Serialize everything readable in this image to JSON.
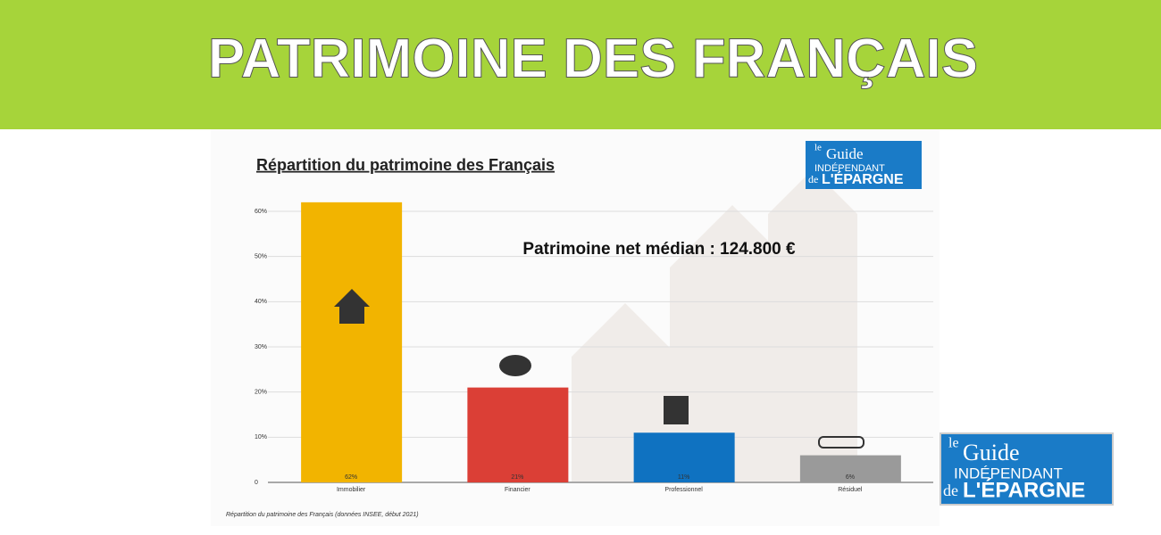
{
  "banner_title": "PATRIMOINE DES FRANÇAIS",
  "logo": {
    "line1": "le",
    "line2": "Guide",
    "line3": "INDÉPENDANT",
    "line4": "de",
    "line5": "L'ÉPARGNE"
  },
  "chart_data": {
    "type": "bar",
    "title": "Répartition du patrimoine des Français",
    "annotation": "Patrimoine net médian : 124.800 €",
    "source": "Répartition du patrimoine des Français (données INSEE, début 2021)",
    "categories": [
      "Immobilier",
      "Financier",
      "Professionnel",
      "Résiduel"
    ],
    "values": [
      62,
      21,
      11,
      6
    ],
    "value_labels": [
      "62%",
      "21%",
      "11%",
      "6%"
    ],
    "colors": [
      "#f2b400",
      "#db3f36",
      "#0f72c1",
      "#9a9a9a"
    ],
    "ylim": [
      0,
      64
    ],
    "yticks": [
      0,
      {
        "value": 10,
        "label": "10%"
      },
      {
        "value": 20,
        "label": "20%"
      },
      {
        "value": 30,
        "label": "30%"
      },
      {
        "value": 40,
        "label": "40%"
      },
      {
        "value": 50,
        "label": "50%"
      },
      {
        "value": 60,
        "label": "60%"
      }
    ],
    "grid": true
  }
}
